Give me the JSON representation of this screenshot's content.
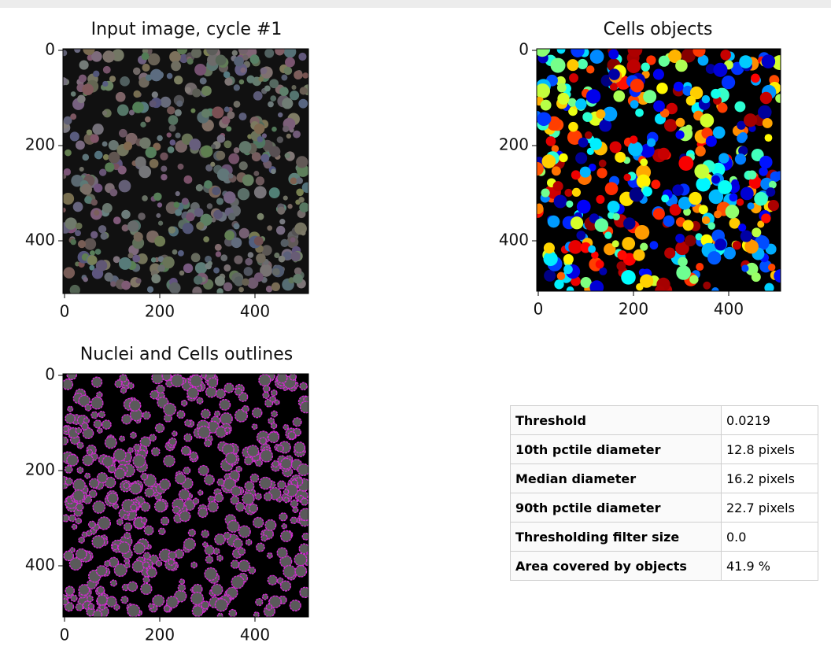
{
  "panels": [
    {
      "title": "Input image, cycle #1",
      "xticks": [
        0,
        200,
        400
      ],
      "yticks": [
        0,
        200,
        400
      ]
    },
    {
      "title": "Cells objects",
      "xticks": [
        0,
        200,
        400
      ],
      "yticks": [
        0,
        200,
        400
      ]
    },
    {
      "title": "Nuclei and Cells outlines",
      "xticks": [
        0,
        200,
        400
      ],
      "yticks": [
        0,
        200,
        400
      ]
    }
  ],
  "table": {
    "rows": [
      [
        "Threshold",
        "0.0219"
      ],
      [
        "10th pctile diameter",
        "12.8 pixels"
      ],
      [
        "Median diameter",
        "16.2 pixels"
      ],
      [
        "90th pctile diameter",
        "22.7 pixels"
      ],
      [
        "Thresholding filter size",
        "0.0"
      ],
      [
        "Area covered by objects",
        "41.9 %"
      ]
    ]
  }
}
